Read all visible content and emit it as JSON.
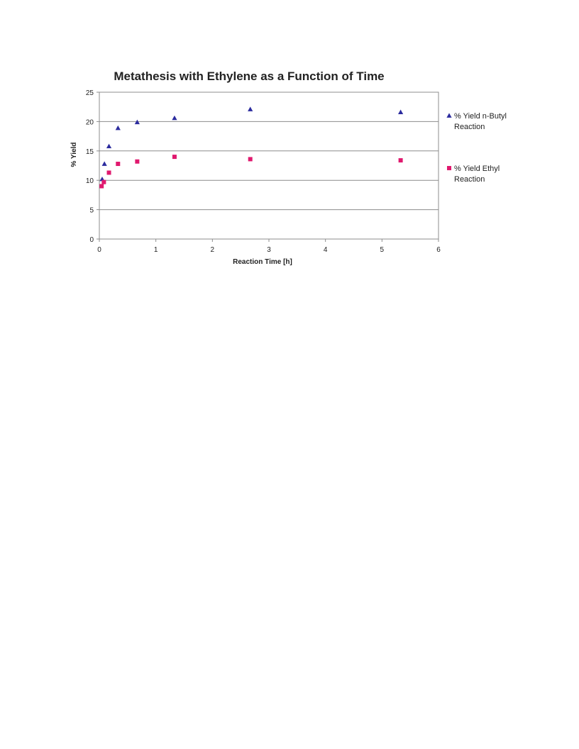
{
  "chart_data": {
    "type": "scatter",
    "title": "Metathesis with Ethylene as a Function of Time",
    "xlabel": "Reaction Time [h]",
    "ylabel": "% Yield",
    "xlim": [
      0,
      6
    ],
    "ylim": [
      0,
      25
    ],
    "xticks": [
      0,
      1,
      2,
      3,
      4,
      5,
      6
    ],
    "yticks": [
      0,
      5,
      10,
      15,
      20,
      25
    ],
    "grid": "horizontal",
    "legend_position": "right",
    "series": [
      {
        "name": "% Yield n-Butyl Reaction",
        "legend_lines": [
          "% Yield n-Butyl",
          "Reaction"
        ],
        "marker": "triangle",
        "color": "#2b2b9e",
        "points": [
          {
            "x": 0.05,
            "y": 10.2
          },
          {
            "x": 0.09,
            "y": 12.8
          },
          {
            "x": 0.17,
            "y": 15.8
          },
          {
            "x": 0.33,
            "y": 18.9
          },
          {
            "x": 0.67,
            "y": 19.9
          },
          {
            "x": 1.33,
            "y": 20.6
          },
          {
            "x": 2.67,
            "y": 22.1
          },
          {
            "x": 5.33,
            "y": 21.6
          }
        ]
      },
      {
        "name": "% Yield Ethyl Reaction",
        "legend_lines": [
          "% Yield Ethyl",
          "Reaction"
        ],
        "marker": "square",
        "color": "#e0196e",
        "points": [
          {
            "x": 0.04,
            "y": 9.0
          },
          {
            "x": 0.08,
            "y": 9.7
          },
          {
            "x": 0.17,
            "y": 11.3
          },
          {
            "x": 0.33,
            "y": 12.8
          },
          {
            "x": 0.67,
            "y": 13.2
          },
          {
            "x": 1.33,
            "y": 14.0
          },
          {
            "x": 2.67,
            "y": 13.6
          },
          {
            "x": 5.33,
            "y": 13.4
          }
        ]
      }
    ]
  }
}
